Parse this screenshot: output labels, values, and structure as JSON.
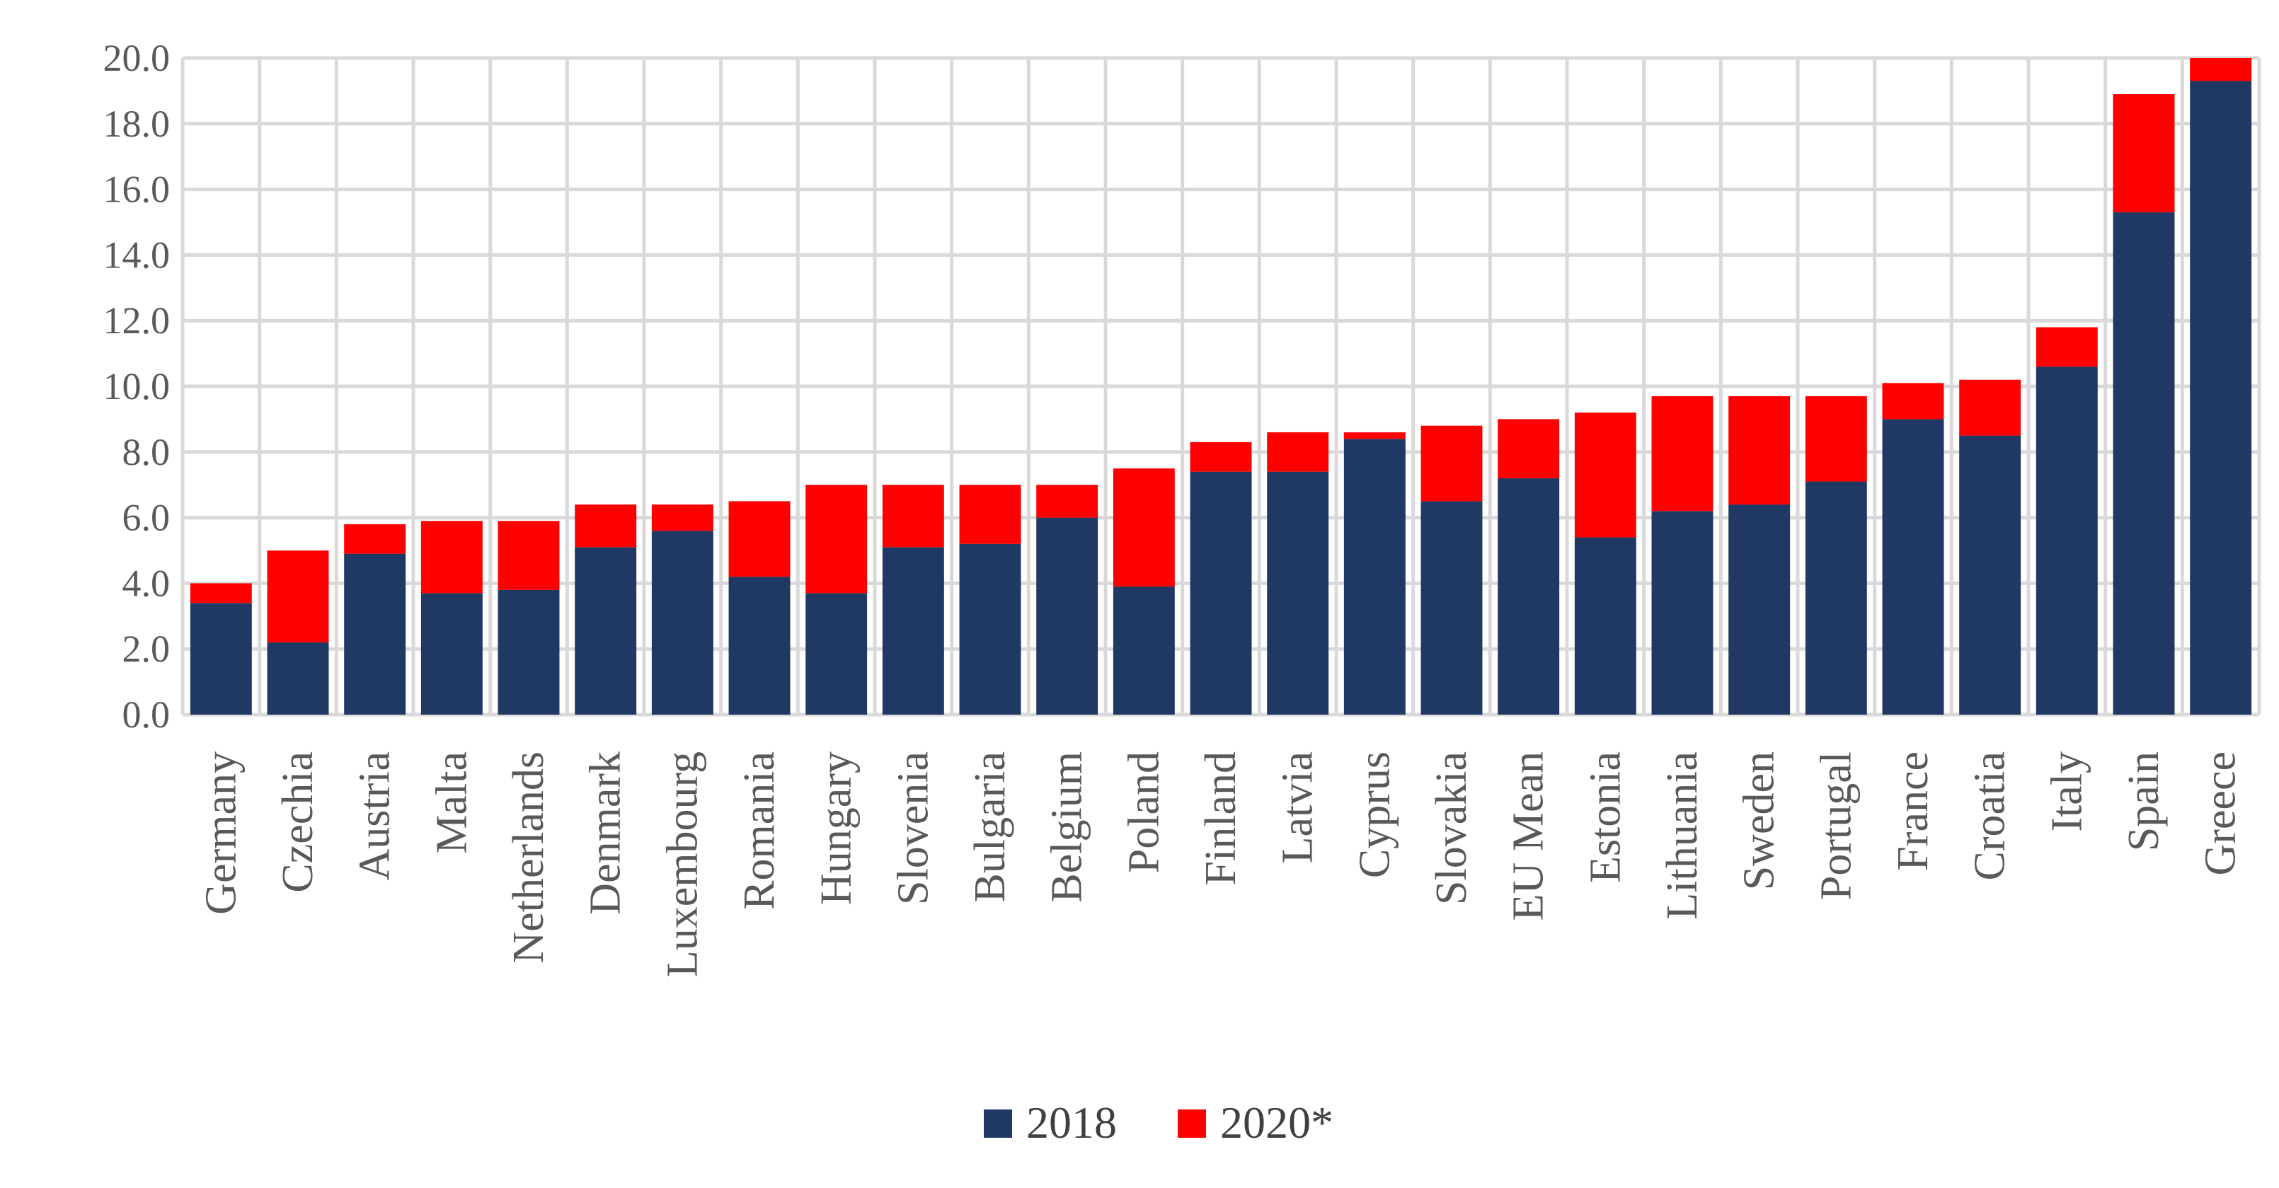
{
  "chart_data": {
    "type": "bar",
    "stacked": true,
    "title": "",
    "xlabel": "",
    "ylabel": "",
    "ylim": [
      0,
      20
    ],
    "yticks": [
      "0.0",
      "2.0",
      "4.0",
      "6.0",
      "8.0",
      "10.0",
      "12.0",
      "14.0",
      "16.0",
      "18.0",
      "20.0"
    ],
    "grid": true,
    "legend_position": "bottom",
    "categories": [
      "Germany",
      "Czechia",
      "Austria",
      "Malta",
      "Netherlands",
      "Denmark",
      "Luxembourg",
      "Romania",
      "Hungary",
      "Slovenia",
      "Bulgaria",
      "Belgium",
      "Poland",
      "Finland",
      "Latvia",
      "Cyprus",
      "Slovakia",
      "EU Mean",
      "Estonia",
      "Lithuania",
      "Sweden",
      "Portugal",
      "France",
      "Croatia",
      "Italy",
      "Spain",
      "Greece"
    ],
    "series": [
      {
        "name": "2018",
        "color": "#203864",
        "values": [
          3.4,
          2.2,
          4.9,
          3.7,
          3.8,
          5.1,
          5.6,
          4.2,
          3.7,
          5.1,
          5.2,
          6.0,
          3.9,
          7.4,
          7.4,
          8.4,
          6.5,
          7.2,
          5.4,
          6.2,
          6.4,
          7.1,
          9.0,
          8.5,
          10.6,
          15.3,
          19.3
        ]
      },
      {
        "name": "2020*",
        "color": "#ff0000",
        "values": [
          0.6,
          2.8,
          0.9,
          2.2,
          2.1,
          1.3,
          0.8,
          2.3,
          3.3,
          1.9,
          1.8,
          1.0,
          3.6,
          0.9,
          1.2,
          0.2,
          2.3,
          1.8,
          3.8,
          3.5,
          3.3,
          2.6,
          1.1,
          1.7,
          1.2,
          3.6,
          0.7
        ]
      }
    ]
  }
}
